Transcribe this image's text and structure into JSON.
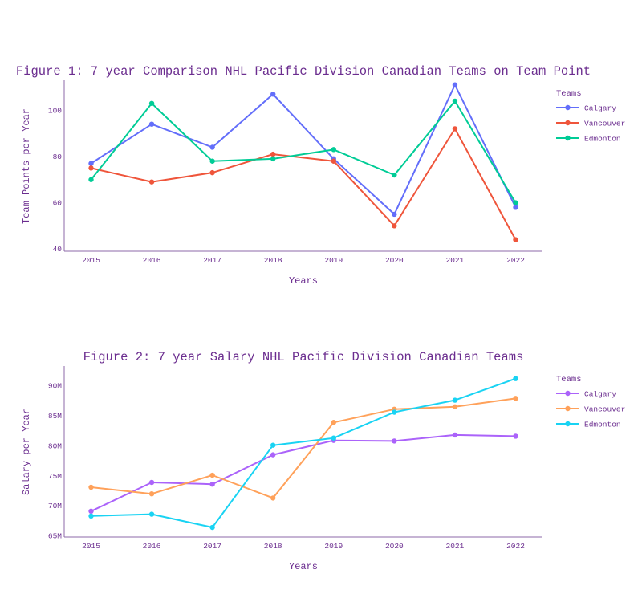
{
  "chart_data": [
    {
      "type": "line",
      "title": "Figure 1: 7 year Comparison NHL Pacific Division Canadian Teams on Team Point",
      "xlabel": "Years",
      "ylabel": "Team Points per Year",
      "x": [
        "2015",
        "2016",
        "2017",
        "2018",
        "2019",
        "2020",
        "2021",
        "2022"
      ],
      "ylim": [
        39,
        113
      ],
      "yticks": [
        40,
        60,
        80,
        100
      ],
      "ytick_labels": [
        "40",
        "60",
        "80",
        "100"
      ],
      "legend_title": "Teams",
      "legend_position": "right",
      "series": [
        {
          "name": "Calgary",
          "color": "#636efa",
          "values": [
            77,
            94,
            84,
            107,
            79,
            55,
            111,
            58
          ]
        },
        {
          "name": "Vancouver",
          "color": "#ef553b",
          "values": [
            75,
            69,
            73,
            81,
            78,
            50,
            92,
            44
          ]
        },
        {
          "name": "Edmonton",
          "color": "#00cc96",
          "values": [
            70,
            103,
            78,
            79,
            83,
            72,
            104,
            60
          ]
        }
      ]
    },
    {
      "type": "line",
      "title": "Figure 2: 7 year Salary NHL Pacific Division Canadian Teams",
      "xlabel": "Years",
      "ylabel": "Salary per Year",
      "x": [
        "2015",
        "2016",
        "2017",
        "2018",
        "2019",
        "2020",
        "2021",
        "2022"
      ],
      "ylim": [
        64.8,
        93.3
      ],
      "yticks": [
        65,
        70,
        75,
        80,
        85,
        90
      ],
      "ytick_labels": [
        "65M",
        "70M",
        "75M",
        "80M",
        "85M",
        "90M"
      ],
      "legend_title": "Teams",
      "legend_position": "right",
      "series": [
        {
          "name": "Calgary",
          "color": "#ab63fa",
          "values": [
            69.1,
            73.9,
            73.6,
            78.5,
            80.9,
            80.8,
            81.8,
            81.6
          ]
        },
        {
          "name": "Vancouver",
          "color": "#ffa15a",
          "values": [
            73.1,
            72.0,
            75.1,
            71.3,
            83.9,
            86.1,
            86.5,
            87.9
          ]
        },
        {
          "name": "Edmonton",
          "color": "#19d3f3",
          "values": [
            68.3,
            68.6,
            66.4,
            80.1,
            81.3,
            85.6,
            87.6,
            91.2
          ]
        }
      ]
    }
  ]
}
